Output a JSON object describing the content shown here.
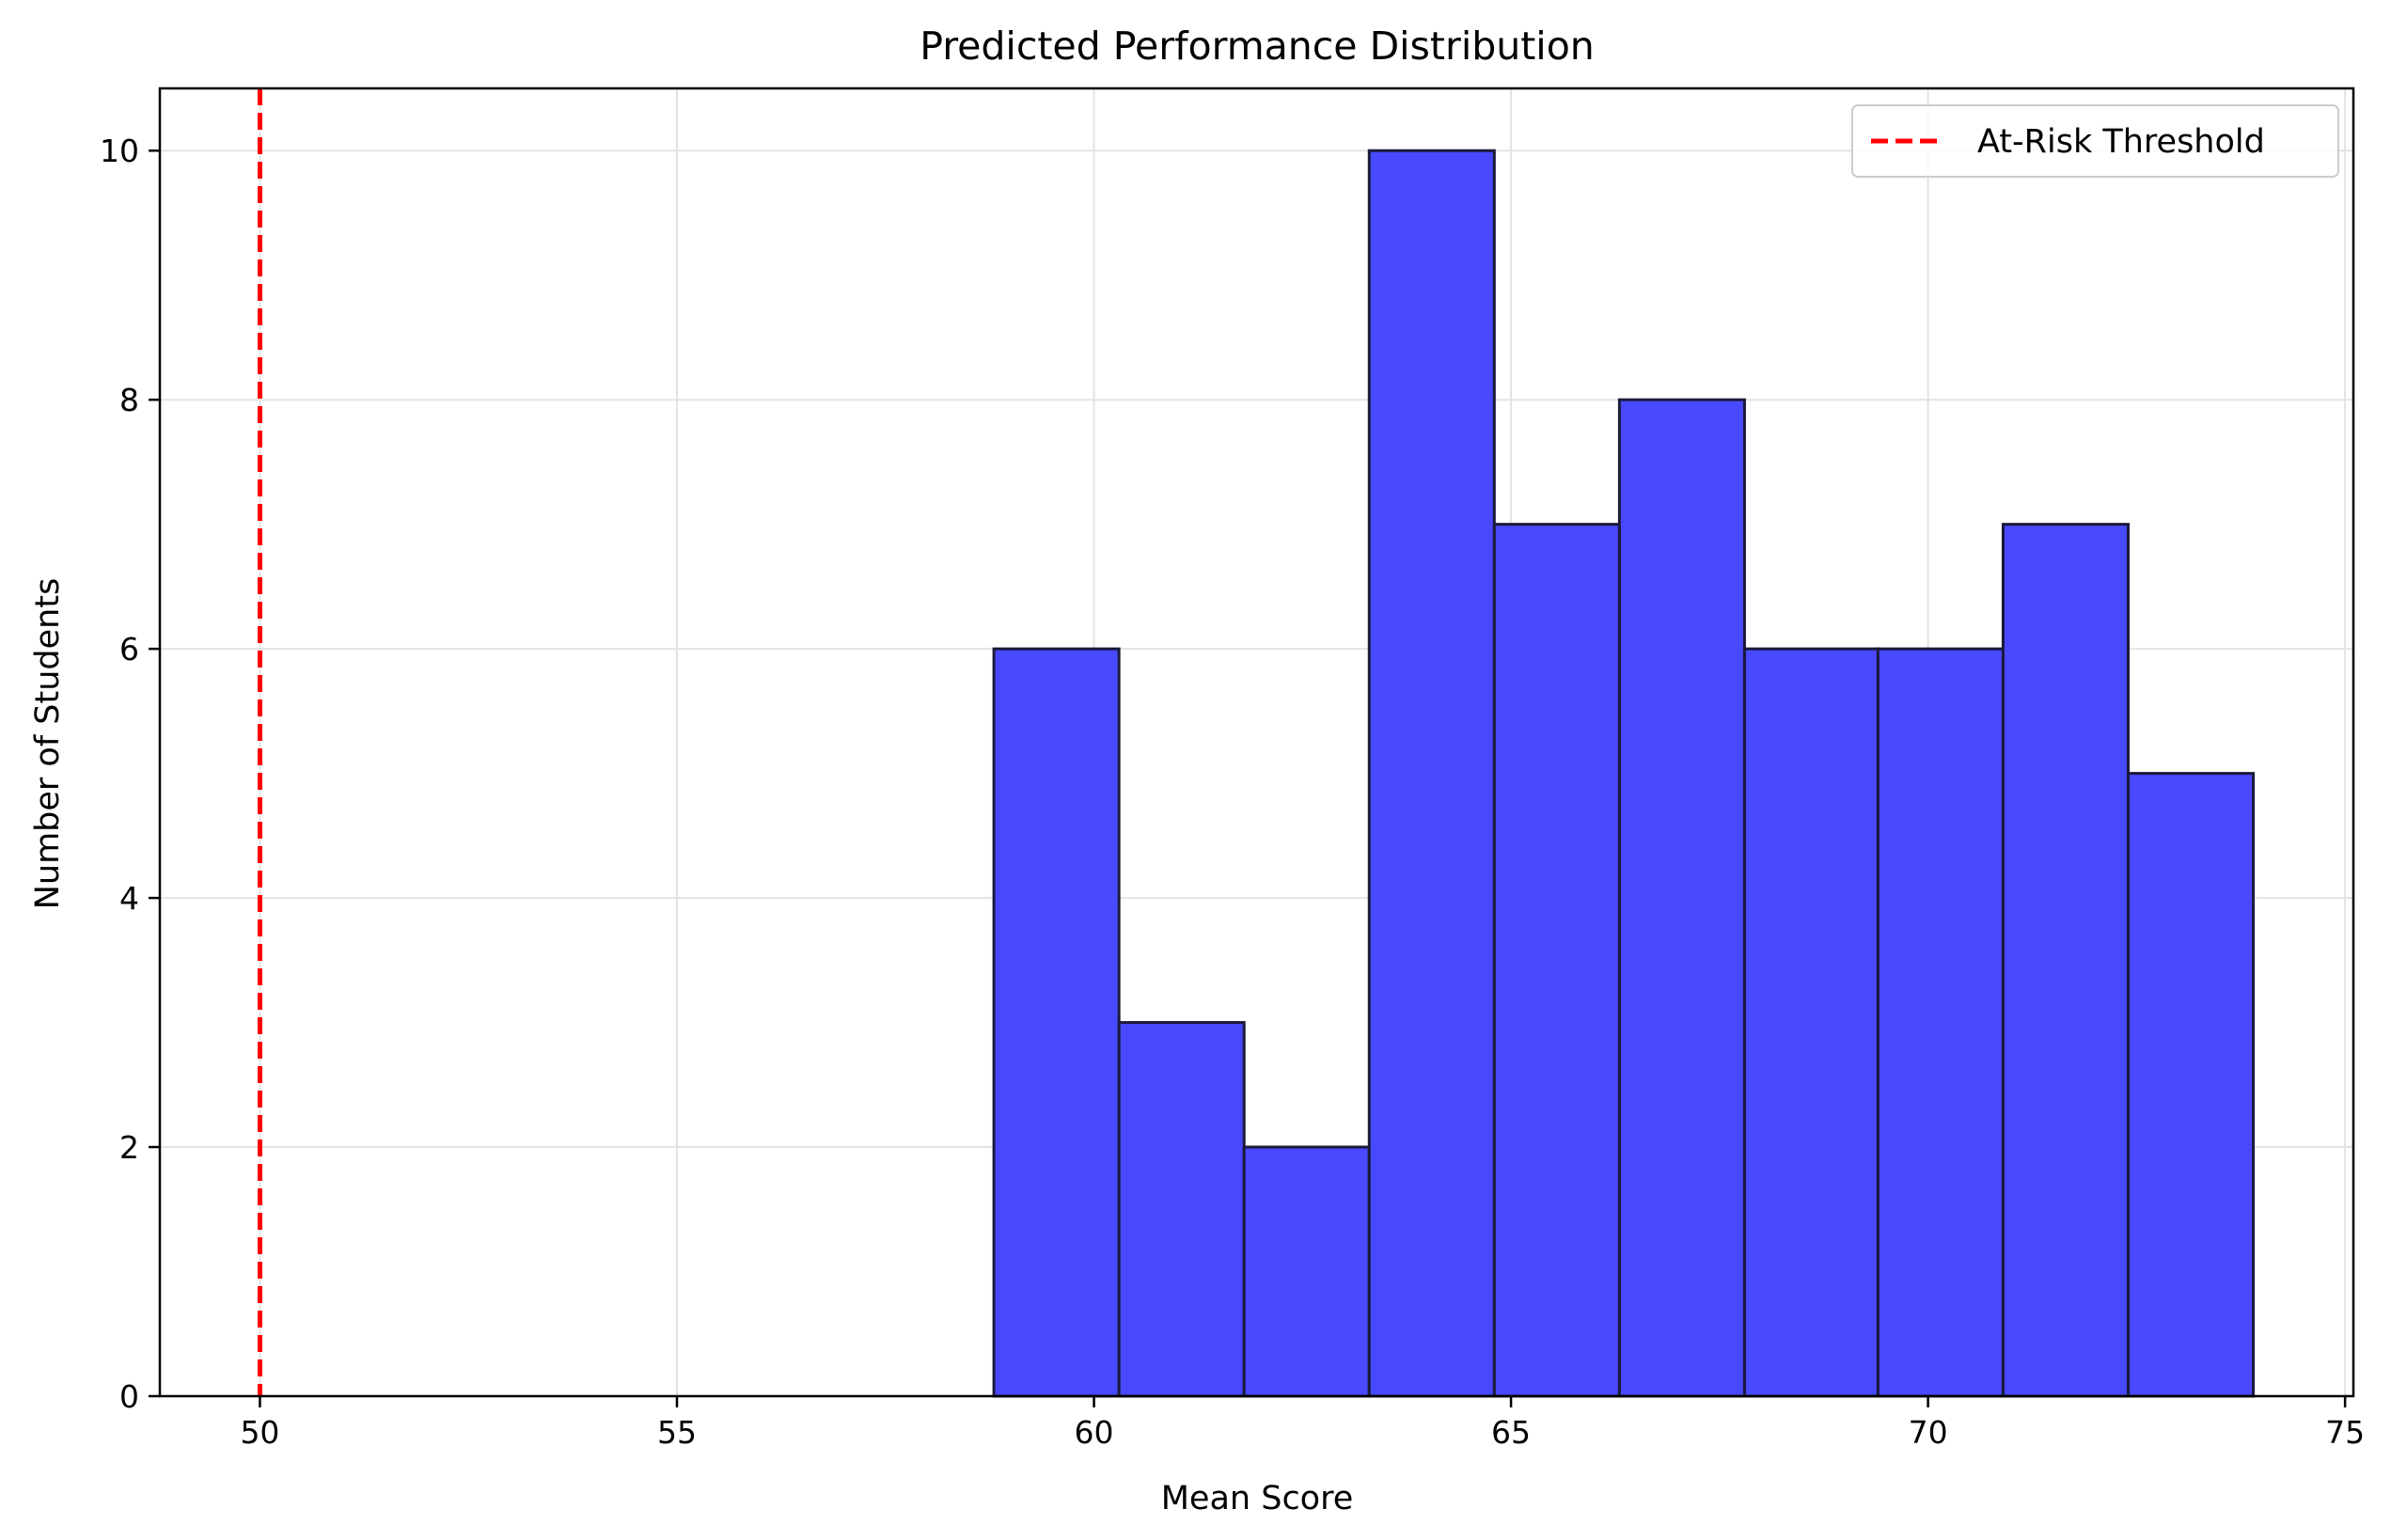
{
  "chart_data": {
    "type": "bar",
    "title": "Predicted Performance Distribution",
    "xlabel": "Mean Score",
    "ylabel": "Number of Students",
    "xlim": [
      48.8,
      75.1
    ],
    "ylim": [
      0,
      10.5
    ],
    "x_ticks": [
      50,
      55,
      60,
      65,
      70,
      75
    ],
    "x_tick_labels": [
      "50",
      "55",
      "60",
      "65",
      "70",
      "75"
    ],
    "y_ticks": [
      0,
      2,
      4,
      6,
      8,
      10
    ],
    "y_tick_labels": [
      "0",
      "2",
      "4",
      "6",
      "8",
      "10"
    ],
    "grid": true,
    "legend_position": "top-right",
    "bins": [
      {
        "x0": 58.8,
        "x1": 60.3,
        "count": 6
      },
      {
        "x0": 60.3,
        "x1": 61.8,
        "count": 3
      },
      {
        "x0": 61.8,
        "x1": 63.3,
        "count": 2
      },
      {
        "x0": 63.3,
        "x1": 64.8,
        "count": 10
      },
      {
        "x0": 64.8,
        "x1": 66.3,
        "count": 7
      },
      {
        "x0": 66.3,
        "x1": 67.8,
        "count": 8
      },
      {
        "x0": 67.8,
        "x1": 69.4,
        "count": 6
      },
      {
        "x0": 69.4,
        "x1": 70.9,
        "count": 6
      },
      {
        "x0": 70.9,
        "x1": 72.4,
        "count": 7
      },
      {
        "x0": 72.4,
        "x1": 73.9,
        "count": 5
      }
    ],
    "bar_color": "#4949ff",
    "bar_edge_color": "#1a1a3a",
    "threshold": {
      "value": 50,
      "label": "At-Risk Threshold",
      "color": "#ff0000",
      "style": "dashed"
    }
  }
}
